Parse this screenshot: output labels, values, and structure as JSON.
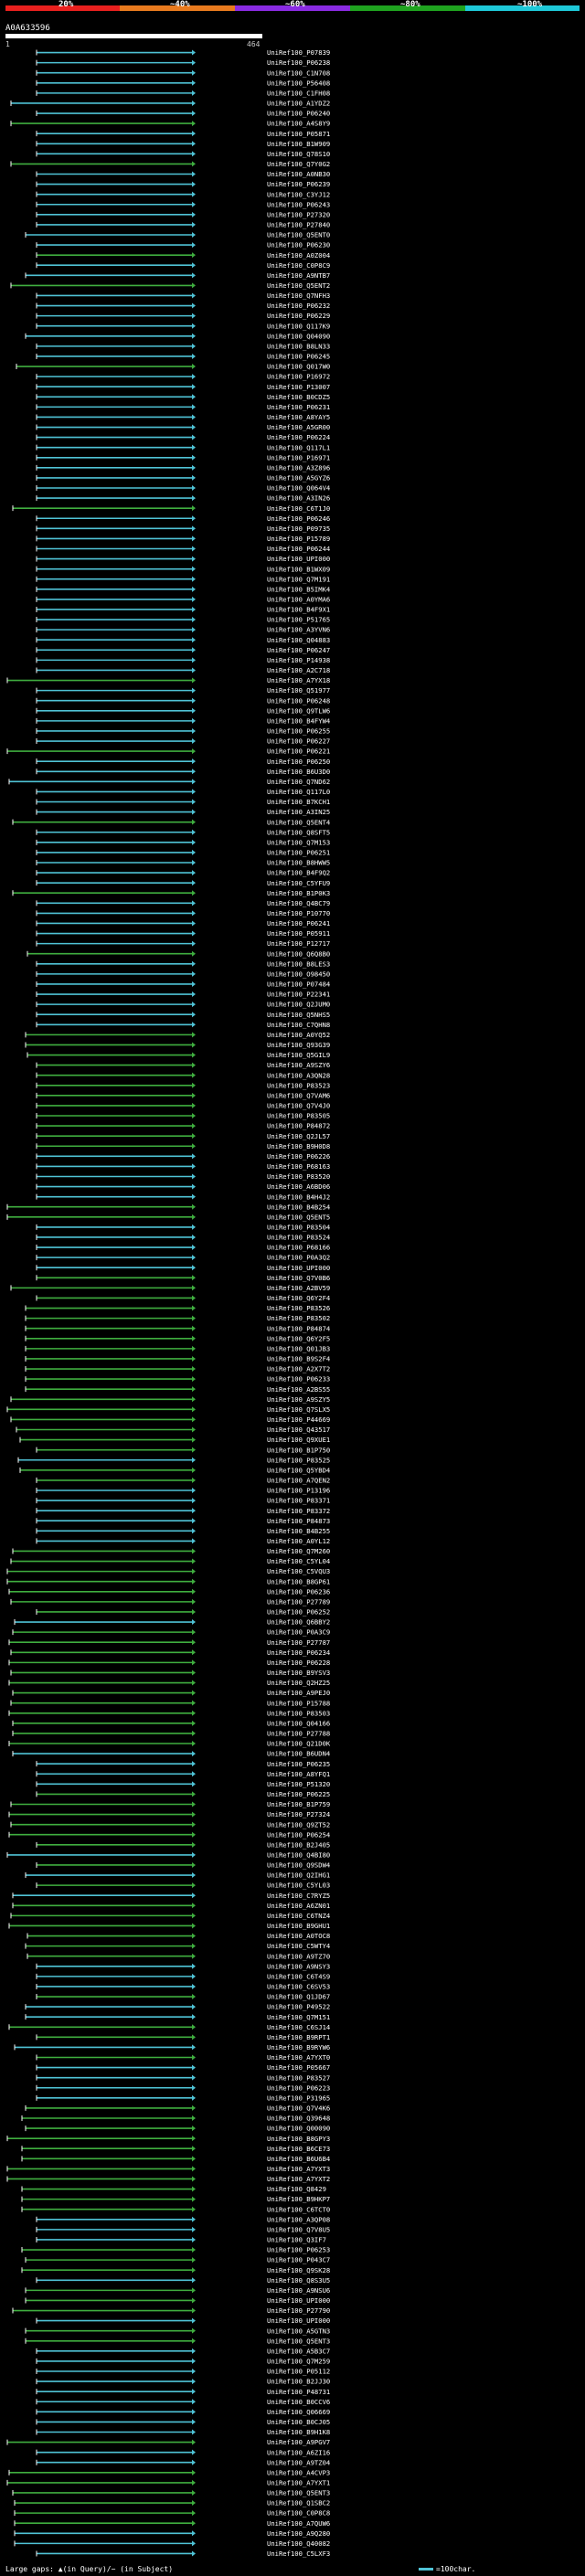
{
  "header": {
    "scale_labels": [
      "20%",
      "~40%",
      "~60%",
      "~80%",
      "~100%"
    ],
    "scale_colors": [
      "#e8201e",
      "#e87a1e",
      "#8a2be2",
      "#1fa31f",
      "#1ec8d8"
    ],
    "query_id": "A0A633596",
    "query_start": "1",
    "query_end": "464"
  },
  "legend": {
    "gaps_text": "Large gaps: ▲(in Query)/− (in Subject)",
    "hit_text": "=100char."
  },
  "colors": {
    "cyan": "#4fc3d6",
    "green": "#3fae3f",
    "line": "#ffffff"
  },
  "hits": [
    {
      "label": "UniRef100_P07839",
      "color": "cyan"
    },
    {
      "label": "UniRef100_P06238",
      "color": "cyan"
    },
    {
      "label": "UniRef100_C1N708",
      "color": "cyan"
    },
    {
      "label": "UniRef100_P56408",
      "color": "cyan"
    },
    {
      "label": "UniRef100_C1FH08",
      "color": "cyan"
    },
    {
      "label": "UniRef100_A1YDZ2",
      "color": "cyan"
    },
    {
      "label": "UniRef100_P06240",
      "color": "cyan"
    },
    {
      "label": "UniRef100_A4S8Y9",
      "color": "green"
    },
    {
      "label": "UniRef100_P05871",
      "color": "cyan"
    },
    {
      "label": "UniRef100_B1W909",
      "color": "cyan"
    },
    {
      "label": "UniRef100_Q78S10",
      "color": "cyan"
    },
    {
      "label": "UniRef100_Q7Y0G2",
      "color": "green"
    },
    {
      "label": "UniRef100_A0NB30",
      "color": "cyan"
    },
    {
      "label": "UniRef100_P06239",
      "color": "cyan"
    },
    {
      "label": "UniRef100_C3YJ12",
      "color": "cyan"
    },
    {
      "label": "UniRef100_P06243",
      "color": "cyan"
    },
    {
      "label": "UniRef100_P27320",
      "color": "cyan"
    },
    {
      "label": "UniRef100_P27840",
      "color": "cyan"
    },
    {
      "label": "UniRef100_Q5ENT0",
      "color": "cyan"
    },
    {
      "label": "UniRef100_P06230",
      "color": "cyan"
    },
    {
      "label": "UniRef100_A0Z004",
      "color": "green"
    },
    {
      "label": "UniRef100_C0P8C9",
      "color": "cyan"
    },
    {
      "label": "UniRef100_A9NTB7",
      "color": "cyan"
    },
    {
      "label": "UniRef100_Q5ENT2",
      "color": "green"
    },
    {
      "label": "UniRef100_Q7NFH3",
      "color": "cyan"
    },
    {
      "label": "UniRef100_P06232",
      "color": "cyan"
    },
    {
      "label": "UniRef100_P06229",
      "color": "cyan"
    },
    {
      "label": "UniRef100_Q117K9",
      "color": "cyan"
    },
    {
      "label": "UniRef100_Q04090",
      "color": "cyan"
    },
    {
      "label": "UniRef100_B8LN33",
      "color": "cyan"
    },
    {
      "label": "UniRef100_P06245",
      "color": "cyan"
    },
    {
      "label": "UniRef100_Q017W0",
      "color": "green"
    },
    {
      "label": "UniRef100_P16972",
      "color": "cyan"
    },
    {
      "label": "UniRef100_P13007",
      "color": "cyan"
    },
    {
      "label": "UniRef100_B0CDZ5",
      "color": "cyan"
    },
    {
      "label": "UniRef100_P06231",
      "color": "cyan"
    },
    {
      "label": "UniRef100_A8YAY5",
      "color": "cyan"
    },
    {
      "label": "UniRef100_A5GR00",
      "color": "cyan"
    },
    {
      "label": "UniRef100_P06224",
      "color": "cyan"
    },
    {
      "label": "UniRef100_Q117L1",
      "color": "cyan"
    },
    {
      "label": "UniRef100_P16971",
      "color": "cyan"
    },
    {
      "label": "UniRef100_A3Z896",
      "color": "cyan"
    },
    {
      "label": "UniRef100_A5GYZ6",
      "color": "cyan"
    },
    {
      "label": "UniRef100_Q064V4",
      "color": "cyan"
    },
    {
      "label": "UniRef100_A3IN26",
      "color": "cyan"
    },
    {
      "label": "UniRef100_C6T1J0",
      "color": "green"
    },
    {
      "label": "UniRef100_P06246",
      "color": "cyan"
    },
    {
      "label": "UniRef100_P09735",
      "color": "cyan"
    },
    {
      "label": "UniRef100_P15789",
      "color": "cyan"
    },
    {
      "label": "UniRef100_P06244",
      "color": "cyan"
    },
    {
      "label": "UniRef100_UPI000",
      "color": "cyan"
    },
    {
      "label": "UniRef100_B1WX09",
      "color": "cyan"
    },
    {
      "label": "UniRef100_Q7M191",
      "color": "cyan"
    },
    {
      "label": "UniRef100_B5IMK4",
      "color": "cyan"
    },
    {
      "label": "UniRef100_A0YMA6",
      "color": "cyan"
    },
    {
      "label": "UniRef100_B4F9X1",
      "color": "cyan"
    },
    {
      "label": "UniRef100_P51765",
      "color": "cyan"
    },
    {
      "label": "UniRef100_A3YVN6",
      "color": "cyan"
    },
    {
      "label": "UniRef100_Q04883",
      "color": "cyan"
    },
    {
      "label": "UniRef100_P06247",
      "color": "cyan"
    },
    {
      "label": "UniRef100_P14938",
      "color": "cyan"
    },
    {
      "label": "UniRef100_A2C718",
      "color": "cyan"
    },
    {
      "label": "UniRef100_A7YX18",
      "color": "green"
    },
    {
      "label": "UniRef100_Q51977",
      "color": "cyan"
    },
    {
      "label": "UniRef100_P06248",
      "color": "cyan"
    },
    {
      "label": "UniRef100_Q9TLW6",
      "color": "cyan"
    },
    {
      "label": "UniRef100_B4FYW4",
      "color": "cyan"
    },
    {
      "label": "UniRef100_P06255",
      "color": "cyan"
    },
    {
      "label": "UniRef100_P06227",
      "color": "cyan"
    },
    {
      "label": "UniRef100_P06221",
      "color": "green"
    },
    {
      "label": "UniRef100_P06250",
      "color": "cyan"
    },
    {
      "label": "UniRef100_B6U3D0",
      "color": "cyan"
    },
    {
      "label": "UniRef100_Q7ND62",
      "color": "cyan"
    },
    {
      "label": "UniRef100_Q117L0",
      "color": "cyan"
    },
    {
      "label": "UniRef100_B7KCH1",
      "color": "cyan"
    },
    {
      "label": "UniRef100_A3IN25",
      "color": "cyan"
    },
    {
      "label": "UniRef100_Q5ENT4",
      "color": "green"
    },
    {
      "label": "UniRef100_Q8SFT5",
      "color": "cyan"
    },
    {
      "label": "UniRef100_Q7M153",
      "color": "cyan"
    },
    {
      "label": "UniRef100_P06251",
      "color": "cyan"
    },
    {
      "label": "UniRef100_B8HWW5",
      "color": "cyan"
    },
    {
      "label": "UniRef100_B4F9Q2",
      "color": "cyan"
    },
    {
      "label": "UniRef100_C5YFU9",
      "color": "cyan"
    },
    {
      "label": "UniRef100_B1P0K3",
      "color": "green"
    },
    {
      "label": "UniRef100_Q4BC79",
      "color": "cyan"
    },
    {
      "label": "UniRef100_P10770",
      "color": "cyan"
    },
    {
      "label": "UniRef100_P06241",
      "color": "cyan"
    },
    {
      "label": "UniRef100_P05911",
      "color": "cyan"
    },
    {
      "label": "UniRef100_P12717",
      "color": "cyan"
    },
    {
      "label": "UniRef100_Q6Q8B0",
      "color": "green"
    },
    {
      "label": "UniRef100_B8LES3",
      "color": "cyan"
    },
    {
      "label": "UniRef100_O98450",
      "color": "cyan"
    },
    {
      "label": "UniRef100_P07484",
      "color": "cyan"
    },
    {
      "label": "UniRef100_P22341",
      "color": "cyan"
    },
    {
      "label": "UniRef100_Q2JUM0",
      "color": "cyan"
    },
    {
      "label": "UniRef100_Q5NHS5",
      "color": "cyan"
    },
    {
      "label": "UniRef100_C7QHN8",
      "color": "cyan"
    },
    {
      "label": "UniRef100_A0YQ52",
      "color": "green"
    },
    {
      "label": "UniRef100_Q93G39",
      "color": "green"
    },
    {
      "label": "UniRef100_Q5GIL9",
      "color": "green"
    },
    {
      "label": "UniRef100_A9SZY6",
      "color": "green"
    },
    {
      "label": "UniRef100_A3QN28",
      "color": "green"
    },
    {
      "label": "UniRef100_P83523",
      "color": "green"
    },
    {
      "label": "UniRef100_Q7VAM6",
      "color": "green"
    },
    {
      "label": "UniRef100_Q7V4J0",
      "color": "green"
    },
    {
      "label": "UniRef100_P83505",
      "color": "green"
    },
    {
      "label": "UniRef100_P84872",
      "color": "green"
    },
    {
      "label": "UniRef100_Q2JL57",
      "color": "green"
    },
    {
      "label": "UniRef100_B9H0D8",
      "color": "green"
    },
    {
      "label": "UniRef100_P06226",
      "color": "cyan"
    },
    {
      "label": "UniRef100_P68163",
      "color": "cyan"
    },
    {
      "label": "UniRef100_P83520",
      "color": "cyan"
    },
    {
      "label": "UniRef100_A6BD06",
      "color": "cyan"
    },
    {
      "label": "UniRef100_B4H4J2",
      "color": "cyan"
    },
    {
      "label": "UniRef100_B4B254",
      "color": "green"
    },
    {
      "label": "UniRef100_Q5ENT5",
      "color": "green"
    },
    {
      "label": "UniRef100_P83504",
      "color": "cyan"
    },
    {
      "label": "UniRef100_P83524",
      "color": "cyan"
    },
    {
      "label": "UniRef100_P68166",
      "color": "cyan"
    },
    {
      "label": "UniRef100_P0A3Q2",
      "color": "cyan"
    },
    {
      "label": "UniRef100_UPI000",
      "color": "cyan"
    },
    {
      "label": "UniRef100_Q7V0B6",
      "color": "green"
    },
    {
      "label": "UniRef100_A2BV59",
      "color": "green"
    },
    {
      "label": "UniRef100_Q6Y2F4",
      "color": "green"
    },
    {
      "label": "UniRef100_P83526",
      "color": "green"
    },
    {
      "label": "UniRef100_P83502",
      "color": "green"
    },
    {
      "label": "UniRef100_P84874",
      "color": "green"
    },
    {
      "label": "UniRef100_Q6Y2F5",
      "color": "green"
    },
    {
      "label": "UniRef100_Q01JB3",
      "color": "green"
    },
    {
      "label": "UniRef100_B9S2F4",
      "color": "green"
    },
    {
      "label": "UniRef100_A2X7T2",
      "color": "green"
    },
    {
      "label": "UniRef100_P06233",
      "color": "green"
    },
    {
      "label": "UniRef100_A2BS55",
      "color": "green"
    },
    {
      "label": "UniRef100_A9SZY5",
      "color": "green"
    },
    {
      "label": "UniRef100_Q7SLX5",
      "color": "green"
    },
    {
      "label": "UniRef100_P44669",
      "color": "green"
    },
    {
      "label": "UniRef100_Q43517",
      "color": "green"
    },
    {
      "label": "UniRef100_Q9XUE1",
      "color": "green"
    },
    {
      "label": "UniRef100_B1P750",
      "color": "green"
    },
    {
      "label": "UniRef100_P83525",
      "color": "cyan"
    },
    {
      "label": "UniRef100_Q5YBD4",
      "color": "green"
    },
    {
      "label": "UniRef100_A7QEN2",
      "color": "green"
    },
    {
      "label": "UniRef100_P13196",
      "color": "cyan"
    },
    {
      "label": "UniRef100_P83371",
      "color": "cyan"
    },
    {
      "label": "UniRef100_P83372",
      "color": "cyan"
    },
    {
      "label": "UniRef100_P84873",
      "color": "cyan"
    },
    {
      "label": "UniRef100_B4B255",
      "color": "cyan"
    },
    {
      "label": "UniRef100_A0YL12",
      "color": "cyan"
    },
    {
      "label": "UniRef100_Q7M260",
      "color": "green"
    },
    {
      "label": "UniRef100_C5YL04",
      "color": "green"
    },
    {
      "label": "UniRef100_C5VQU3",
      "color": "green"
    },
    {
      "label": "UniRef100_B8GP61",
      "color": "green"
    },
    {
      "label": "UniRef100_P06236",
      "color": "green"
    },
    {
      "label": "UniRef100_P27789",
      "color": "green"
    },
    {
      "label": "UniRef100_P06252",
      "color": "green"
    },
    {
      "label": "UniRef100_Q6BBY2",
      "color": "cyan"
    },
    {
      "label": "UniRef100_P0A3C9",
      "color": "green"
    },
    {
      "label": "UniRef100_P27787",
      "color": "green"
    },
    {
      "label": "UniRef100_P06234",
      "color": "green"
    },
    {
      "label": "UniRef100_P06228",
      "color": "green"
    },
    {
      "label": "UniRef100_B9YSV3",
      "color": "green"
    },
    {
      "label": "UniRef100_Q2HZ25",
      "color": "green"
    },
    {
      "label": "UniRef100_A9PEJ0",
      "color": "green"
    },
    {
      "label": "UniRef100_P15788",
      "color": "green"
    },
    {
      "label": "UniRef100_P83503",
      "color": "green"
    },
    {
      "label": "UniRef100_Q04166",
      "color": "green"
    },
    {
      "label": "UniRef100_P27788",
      "color": "green"
    },
    {
      "label": "UniRef100_Q21D0K",
      "color": "green"
    },
    {
      "label": "UniRef100_B6UDN4",
      "color": "cyan"
    },
    {
      "label": "UniRef100_P06235",
      "color": "cyan"
    },
    {
      "label": "UniRef100_A8YFQ1",
      "color": "cyan"
    },
    {
      "label": "UniRef100_P51320",
      "color": "cyan"
    },
    {
      "label": "UniRef100_P06225",
      "color": "green"
    },
    {
      "label": "UniRef100_B1P759",
      "color": "green"
    },
    {
      "label": "UniRef100_P27324",
      "color": "green"
    },
    {
      "label": "UniRef100_Q9ZT52",
      "color": "green"
    },
    {
      "label": "UniRef100_P06254",
      "color": "green"
    },
    {
      "label": "UniRef100_B2J405",
      "color": "green"
    },
    {
      "label": "UniRef100_Q4BI80",
      "color": "cyan"
    },
    {
      "label": "UniRef100_Q9SDW4",
      "color": "green"
    },
    {
      "label": "UniRef100_Q2IHG1",
      "color": "cyan"
    },
    {
      "label": "UniRef100_C5YL03",
      "color": "green"
    },
    {
      "label": "UniRef100_C7RYZ5",
      "color": "cyan"
    },
    {
      "label": "UniRef100_A6ZN01",
      "color": "green"
    },
    {
      "label": "UniRef100_C6TNZ4",
      "color": "green"
    },
    {
      "label": "UniRef100_B9GHU1",
      "color": "green"
    },
    {
      "label": "UniRef100_A0TOC8",
      "color": "green"
    },
    {
      "label": "UniRef100_C5WTY4",
      "color": "green"
    },
    {
      "label": "UniRef100_A9TZ70",
      "color": "green"
    },
    {
      "label": "UniRef100_A9NSY3",
      "color": "cyan"
    },
    {
      "label": "UniRef100_C6T4S9",
      "color": "cyan"
    },
    {
      "label": "UniRef100_C6SV53",
      "color": "cyan"
    },
    {
      "label": "UniRef100_Q1JD67",
      "color": "green"
    },
    {
      "label": "UniRef100_P49522",
      "color": "cyan"
    },
    {
      "label": "UniRef100_Q7M151",
      "color": "cyan"
    },
    {
      "label": "UniRef100_C6SJ14",
      "color": "green"
    },
    {
      "label": "UniRef100_B9RPT1",
      "color": "green"
    },
    {
      "label": "UniRef100_B9RYW6",
      "color": "cyan"
    },
    {
      "label": "UniRef100_A7YXT0",
      "color": "green"
    },
    {
      "label": "UniRef100_P05667",
      "color": "cyan"
    },
    {
      "label": "UniRef100_P83527",
      "color": "cyan"
    },
    {
      "label": "UniRef100_P06223",
      "color": "cyan"
    },
    {
      "label": "UniRef100_P31965",
      "color": "cyan"
    },
    {
      "label": "UniRef100_Q7V4K6",
      "color": "green"
    },
    {
      "label": "UniRef100_Q39648",
      "color": "green"
    },
    {
      "label": "UniRef100_Q00090",
      "color": "green"
    },
    {
      "label": "UniRef100_B8GPY3",
      "color": "green"
    },
    {
      "label": "UniRef100_B6CE73",
      "color": "green"
    },
    {
      "label": "UniRef100_B6U6B4",
      "color": "green"
    },
    {
      "label": "UniRef100_A7YXT3",
      "color": "green"
    },
    {
      "label": "UniRef100_A7YXT2",
      "color": "green"
    },
    {
      "label": "UniRef100_Q8429",
      "color": "green"
    },
    {
      "label": "UniRef100_B9HKP7",
      "color": "green"
    },
    {
      "label": "UniRef100_C6TCT0",
      "color": "green"
    },
    {
      "label": "UniRef100_A3QP08",
      "color": "cyan"
    },
    {
      "label": "UniRef100_Q7V8U5",
      "color": "cyan"
    },
    {
      "label": "UniRef100_Q3IF7",
      "color": "cyan"
    },
    {
      "label": "UniRef100_P06253",
      "color": "green"
    },
    {
      "label": "UniRef100_P043C7",
      "color": "green"
    },
    {
      "label": "UniRef100_Q9SK28",
      "color": "green"
    },
    {
      "label": "UniRef100_Q8S3U5",
      "color": "cyan"
    },
    {
      "label": "UniRef100_A9NSU6",
      "color": "green"
    },
    {
      "label": "UniRef100_UPI000",
      "color": "green"
    },
    {
      "label": "UniRef100_P27790",
      "color": "green"
    },
    {
      "label": "UniRef100_UPI000",
      "color": "cyan"
    },
    {
      "label": "UniRef100_A5GTN3",
      "color": "green"
    },
    {
      "label": "UniRef100_Q5ENT3",
      "color": "green"
    },
    {
      "label": "UniRef100_A5B3C7",
      "color": "cyan"
    },
    {
      "label": "UniRef100_Q7M259",
      "color": "cyan"
    },
    {
      "label": "UniRef100_P05112",
      "color": "cyan"
    },
    {
      "label": "UniRef100_B2JJ30",
      "color": "cyan"
    },
    {
      "label": "UniRef100_P48731",
      "color": "cyan"
    },
    {
      "label": "UniRef100_B0CCV6",
      "color": "cyan"
    },
    {
      "label": "UniRef100_Q06669",
      "color": "cyan"
    },
    {
      "label": "UniRef100_B0CJ05",
      "color": "cyan"
    },
    {
      "label": "UniRef100_B9H1K8",
      "color": "cyan"
    },
    {
      "label": "UniRef100_A9PGV7",
      "color": "green"
    },
    {
      "label": "UniRef100_A6ZI16",
      "color": "cyan"
    },
    {
      "label": "UniRef100_A9TZ04",
      "color": "cyan"
    },
    {
      "label": "UniRef100_A4CVP3",
      "color": "green"
    },
    {
      "label": "UniRef100_A7YXT1",
      "color": "green"
    },
    {
      "label": "UniRef100_Q5ENT3",
      "color": "green"
    },
    {
      "label": "UniRef100_Q1SBC2",
      "color": "green"
    },
    {
      "label": "UniRef100_C0P8C8",
      "color": "green"
    },
    {
      "label": "UniRef100_A7QUW6",
      "color": "green"
    },
    {
      "label": "UniRef100_A9Q280",
      "color": "cyan"
    },
    {
      "label": "UniRef100_Q40082",
      "color": "cyan"
    },
    {
      "label": "UniRef100_C5LXF3",
      "color": "cyan"
    }
  ]
}
